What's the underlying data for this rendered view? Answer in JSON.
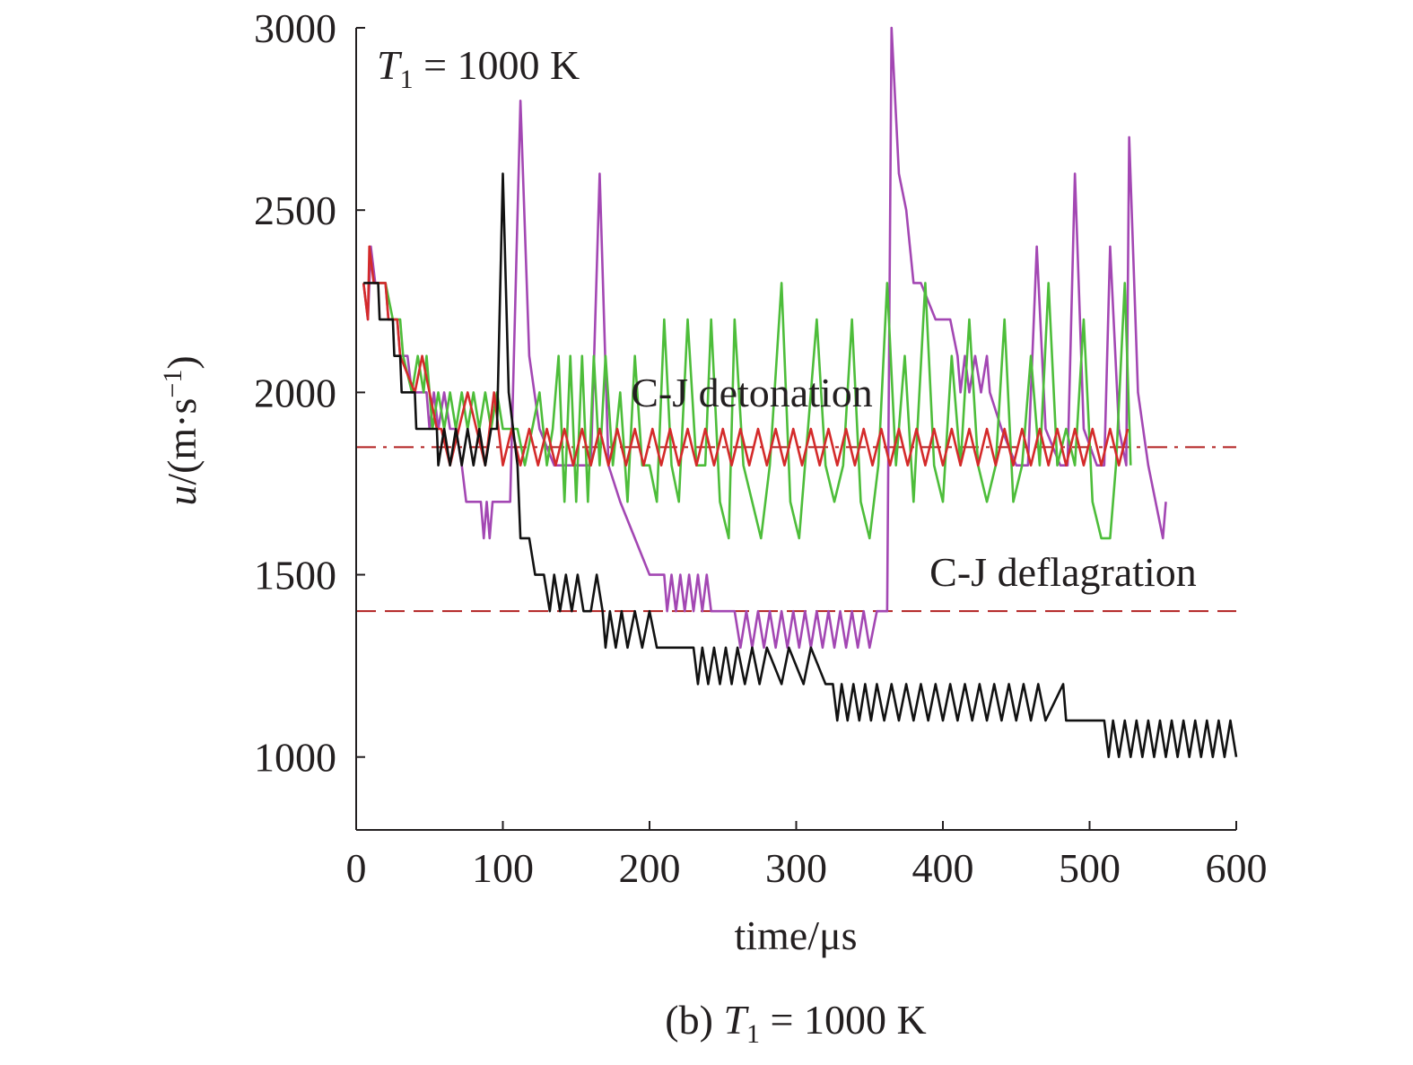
{
  "chart_data": {
    "type": "line",
    "annotation": [
      "T",
      "1",
      " = 1000 K"
    ],
    "xlabel": "time/μs",
    "ylabel": [
      "u",
      "/(m·s",
      "−1",
      ")"
    ],
    "caption": [
      "(b) ",
      "T",
      "1",
      " = 1000 K"
    ],
    "xlim": [
      0,
      600
    ],
    "xticks": [
      0,
      100,
      200,
      300,
      400,
      500,
      600
    ],
    "ylim": [
      800,
      3000
    ],
    "yticks": [
      1000,
      1500,
      2000,
      2500,
      3000
    ],
    "reference_lines": [
      {
        "value": 1850,
        "label": "C-J detonation",
        "color": "#b22222",
        "style": "dashdot"
      },
      {
        "value": 1400,
        "label": "C-J deflagration",
        "color": "#b22222",
        "style": "dash"
      }
    ],
    "series": [
      {
        "color": "#a347b3",
        "x": [
          5,
          8,
          10,
          13,
          20,
          22,
          28,
          30,
          35,
          38,
          45,
          48,
          50,
          53,
          56,
          60,
          64,
          68,
          72,
          75,
          85,
          87,
          89,
          91,
          93,
          105,
          112,
          118,
          125,
          135,
          160,
          166,
          172,
          180,
          190,
          200,
          210,
          212,
          215,
          218,
          221,
          224,
          227,
          230,
          233,
          236,
          239,
          242,
          250,
          258,
          262,
          266,
          270,
          274,
          278,
          282,
          286,
          290,
          294,
          298,
          302,
          306,
          310,
          314,
          318,
          322,
          326,
          330,
          334,
          338,
          342,
          346,
          350,
          355,
          362,
          365,
          370,
          375,
          380,
          385,
          395,
          405,
          410,
          412,
          415,
          418,
          422,
          426,
          430,
          432,
          440,
          450,
          458,
          464,
          470,
          480,
          485,
          490,
          496,
          505,
          510,
          514,
          520,
          525,
          527,
          533,
          540,
          545,
          550,
          552
        ],
        "values": [
          2300,
          2200,
          2400,
          2300,
          2300,
          2200,
          2200,
          2100,
          2100,
          2000,
          2000,
          2000,
          1900,
          2000,
          1900,
          2000,
          1900,
          1900,
          1800,
          1700,
          1700,
          1600,
          1700,
          1600,
          1700,
          1700,
          2800,
          2100,
          1900,
          1800,
          1800,
          2600,
          1800,
          1700,
          1600,
          1500,
          1500,
          1400,
          1500,
          1400,
          1500,
          1400,
          1500,
          1400,
          1500,
          1400,
          1500,
          1400,
          1400,
          1400,
          1300,
          1400,
          1300,
          1400,
          1300,
          1400,
          1300,
          1400,
          1300,
          1400,
          1300,
          1400,
          1300,
          1400,
          1300,
          1400,
          1300,
          1400,
          1300,
          1400,
          1300,
          1400,
          1300,
          1400,
          1400,
          3000,
          2600,
          2500,
          2300,
          2300,
          2200,
          2200,
          2100,
          2000,
          2100,
          2000,
          2100,
          2000,
          2100,
          2000,
          1900,
          1800,
          1800,
          2400,
          1900,
          1800,
          1800,
          2600,
          1900,
          1800,
          1800,
          2400,
          1900,
          1800,
          2700,
          2000,
          1800,
          1700,
          1600,
          1700
        ]
      },
      {
        "color": "#4dbd3a",
        "x": [
          15,
          20,
          25,
          30,
          32,
          38,
          42,
          46,
          48,
          52,
          56,
          60,
          64,
          68,
          72,
          76,
          80,
          84,
          88,
          92,
          96,
          100,
          105,
          110,
          115,
          125,
          130,
          134,
          138,
          142,
          146,
          150,
          154,
          158,
          162,
          166,
          170,
          175,
          180,
          185,
          190,
          195,
          200,
          205,
          210,
          215,
          220,
          226,
          232,
          238,
          242,
          248,
          254,
          258,
          264,
          270,
          276,
          282,
          290,
          296,
          302,
          308,
          314,
          320,
          326,
          332,
          338,
          344,
          350,
          356,
          362,
          368,
          374,
          380,
          388,
          394,
          400,
          406,
          412,
          418,
          424,
          430,
          436,
          442,
          448,
          454,
          460,
          466,
          472,
          478,
          484,
          490,
          496,
          502,
          508,
          514,
          518,
          524,
          528
        ],
        "values": [
          2300,
          2300,
          2200,
          2200,
          2100,
          2000,
          2100,
          2000,
          2100,
          1900,
          2000,
          1900,
          2000,
          1900,
          2000,
          1900,
          2000,
          1900,
          2000,
          1900,
          2000,
          1900,
          1900,
          1900,
          1800,
          2000,
          1800,
          1900,
          2100,
          1700,
          2100,
          1700,
          2100,
          1700,
          2100,
          1800,
          2100,
          1800,
          2000,
          1700,
          2100,
          1800,
          1800,
          1700,
          2200,
          1800,
          1700,
          2200,
          1800,
          1800,
          2200,
          1700,
          1600,
          2200,
          1800,
          1700,
          1600,
          1800,
          2300,
          1700,
          1600,
          1900,
          2200,
          1800,
          1700,
          1800,
          2200,
          1700,
          1600,
          1800,
          2300,
          1800,
          2100,
          1700,
          2300,
          1800,
          1700,
          2100,
          1800,
          2200,
          1800,
          1700,
          1800,
          2200,
          1700,
          1800,
          2100,
          1800,
          2300,
          1800,
          1900,
          1800,
          2200,
          1700,
          1600,
          1600,
          1800,
          2300,
          1800
        ]
      },
      {
        "color": "#d42a2a",
        "x": [
          5,
          8,
          9,
          12,
          20,
          22,
          28,
          30,
          40,
          45,
          50,
          55,
          58,
          64,
          70,
          76,
          82,
          88,
          94,
          100,
          106,
          112,
          118,
          124,
          130,
          136,
          142,
          148,
          154,
          160,
          166,
          172,
          178,
          184,
          190,
          196,
          202,
          208,
          214,
          220,
          226,
          232,
          238,
          244,
          250,
          256,
          262,
          268,
          274,
          280,
          286,
          292,
          298,
          304,
          310,
          316,
          322,
          328,
          334,
          340,
          346,
          352,
          358,
          364,
          370,
          376,
          382,
          388,
          394,
          400,
          406,
          412,
          418,
          424,
          430,
          436,
          442,
          448,
          454,
          460,
          466,
          472,
          478,
          484,
          490,
          496,
          502,
          508,
          514,
          520,
          526
        ],
        "values": [
          2300,
          2200,
          2400,
          2300,
          2300,
          2200,
          2200,
          2100,
          2000,
          2100,
          2000,
          1900,
          1900,
          1800,
          1900,
          2000,
          1900,
          1800,
          2000,
          1800,
          1900,
          1800,
          1900,
          1800,
          1900,
          1800,
          1900,
          1800,
          1900,
          1800,
          1900,
          1800,
          1900,
          1800,
          1900,
          1800,
          1900,
          1800,
          1900,
          1800,
          1900,
          1800,
          1900,
          1800,
          1900,
          1800,
          1900,
          1800,
          1900,
          1800,
          1900,
          1800,
          1900,
          1800,
          1900,
          1800,
          1900,
          1800,
          1900,
          1800,
          1900,
          1800,
          1900,
          1800,
          1900,
          1800,
          1900,
          1800,
          1900,
          1800,
          1900,
          1800,
          1900,
          1800,
          1900,
          1800,
          1900,
          1800,
          1900,
          1800,
          1900,
          1800,
          1900,
          1800,
          1900,
          1800,
          1900,
          1800,
          1900,
          1800,
          1900
        ]
      },
      {
        "color": "#111111",
        "x": [
          5,
          15,
          16,
          25,
          26,
          30,
          31,
          40,
          41,
          55,
          56,
          60,
          64,
          68,
          72,
          76,
          80,
          84,
          88,
          92,
          96,
          100,
          104,
          107,
          110,
          112,
          118,
          122,
          128,
          132,
          135,
          139,
          143,
          147,
          151,
          155,
          160,
          164,
          168,
          170,
          173,
          177,
          181,
          185,
          190,
          195,
          200,
          205,
          210,
          230,
          233,
          236,
          240,
          244,
          248,
          252,
          256,
          260,
          265,
          270,
          275,
          280,
          290,
          295,
          305,
          310,
          320,
          325,
          328,
          331,
          335,
          339,
          343,
          347,
          351,
          355,
          360,
          365,
          370,
          375,
          380,
          385,
          390,
          395,
          400,
          405,
          410,
          415,
          420,
          425,
          430,
          435,
          440,
          445,
          450,
          455,
          460,
          465,
          470,
          482,
          484,
          510,
          513,
          516,
          520,
          524,
          528,
          532,
          536,
          540,
          544,
          548,
          552,
          556,
          560,
          564,
          568,
          572,
          576,
          580,
          584,
          588,
          592,
          596,
          600
        ],
        "values": [
          2300,
          2300,
          2200,
          2200,
          2100,
          2100,
          2000,
          2000,
          1900,
          1900,
          1800,
          1900,
          1800,
          1900,
          1800,
          1900,
          1800,
          1900,
          1800,
          1900,
          1900,
          2600,
          2000,
          1900,
          1800,
          1600,
          1600,
          1500,
          1500,
          1400,
          1500,
          1400,
          1500,
          1400,
          1500,
          1400,
          1400,
          1500,
          1400,
          1300,
          1400,
          1300,
          1400,
          1300,
          1400,
          1300,
          1400,
          1300,
          1300,
          1300,
          1200,
          1300,
          1200,
          1300,
          1200,
          1300,
          1200,
          1300,
          1200,
          1300,
          1200,
          1300,
          1200,
          1300,
          1200,
          1300,
          1200,
          1200,
          1100,
          1200,
          1100,
          1200,
          1100,
          1200,
          1100,
          1200,
          1100,
          1200,
          1100,
          1200,
          1100,
          1200,
          1100,
          1200,
          1100,
          1200,
          1100,
          1200,
          1100,
          1200,
          1100,
          1200,
          1100,
          1200,
          1100,
          1200,
          1100,
          1200,
          1100,
          1200,
          1100,
          1100,
          1000,
          1100,
          1000,
          1100,
          1000,
          1100,
          1000,
          1100,
          1000,
          1100,
          1000,
          1100,
          1000,
          1100,
          1000,
          1100,
          1000,
          1100,
          1000,
          1100,
          1000,
          1100,
          1000
        ]
      }
    ]
  }
}
